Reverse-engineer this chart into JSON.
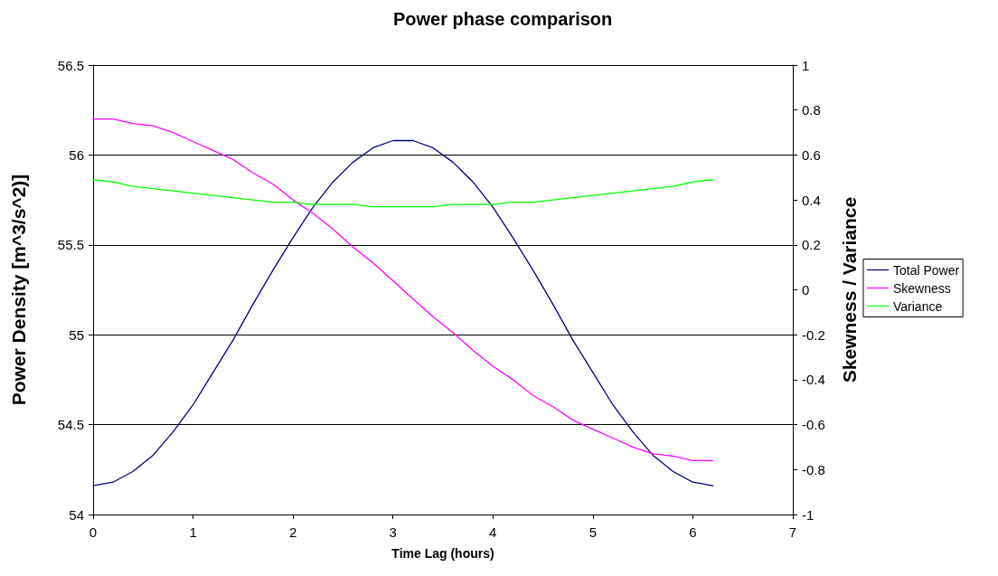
{
  "chart_data": {
    "type": "line",
    "title": "Power phase comparison",
    "xlabel": "Time Lag (hours)",
    "ylabel": "Power Density [m^3/s^2)]",
    "y2label": "Skewness / Variance",
    "x": [
      0,
      0.2,
      0.4,
      0.6,
      0.8,
      1,
      1.2,
      1.4,
      1.6,
      1.8,
      2,
      2.2,
      2.4,
      2.6,
      2.8,
      3,
      3.2,
      3.4,
      3.6,
      3.8,
      4,
      4.2,
      4.4,
      4.6,
      4.8,
      5,
      5.2,
      5.4,
      5.6,
      5.8,
      6,
      6.2
    ],
    "series": [
      {
        "name": "Total Power",
        "color": "#000080",
        "values": [
          54.16,
          54.18,
          54.24,
          54.33,
          54.46,
          54.61,
          54.79,
          54.97,
          55.17,
          55.36,
          55.54,
          55.71,
          55.85,
          55.96,
          56.04,
          56.08,
          56.08,
          56.04,
          55.96,
          55.85,
          55.71,
          55.54,
          55.36,
          55.17,
          54.97,
          54.79,
          54.61,
          54.46,
          54.33,
          54.24,
          54.18,
          54.16
        ]
      },
      {
        "name": "Skewness",
        "color": "#ff00ff",
        "axis": "y2",
        "values": [
          0.76,
          0.76,
          0.74,
          0.73,
          0.7,
          0.66,
          0.62,
          0.58,
          0.52,
          0.47,
          0.4,
          0.34,
          0.27,
          0.19,
          0.12,
          0.04,
          -0.04,
          -0.12,
          -0.19,
          -0.27,
          -0.34,
          -0.4,
          -0.47,
          -0.52,
          -0.58,
          -0.62,
          -0.66,
          -0.7,
          -0.73,
          -0.74,
          -0.76,
          -0.76
        ]
      },
      {
        "name": "Variance",
        "color": "#00ff00",
        "axis": "y2",
        "values": [
          0.49,
          0.48,
          0.46,
          0.45,
          0.44,
          0.43,
          0.42,
          0.41,
          0.4,
          0.39,
          0.39,
          0.38,
          0.38,
          0.38,
          0.37,
          0.37,
          0.37,
          0.37,
          0.38,
          0.38,
          0.38,
          0.39,
          0.39,
          0.4,
          0.41,
          0.42,
          0.43,
          0.44,
          0.45,
          0.46,
          0.48,
          0.49
        ]
      }
    ],
    "xlim": [
      0,
      7
    ],
    "xticks": [
      0,
      1,
      2,
      3,
      4,
      5,
      6,
      7
    ],
    "ylim": [
      54,
      56.5
    ],
    "yticks": [
      54,
      54.5,
      55,
      55.5,
      56,
      56.5
    ],
    "y2lim": [
      -1,
      1
    ],
    "y2ticks": [
      -1,
      -0.8,
      -0.6,
      -0.4,
      -0.2,
      0,
      0.2,
      0.4,
      0.6,
      0.8,
      1
    ],
    "grid": "y",
    "legend": "right",
    "marker": "none",
    "line_style": "solid"
  }
}
